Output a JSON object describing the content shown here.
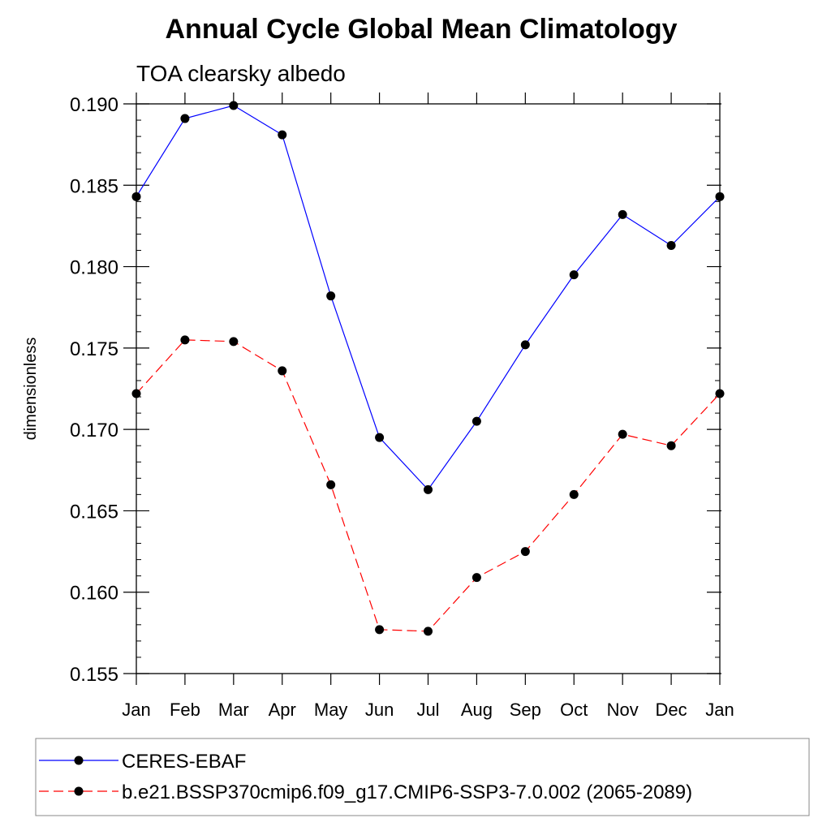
{
  "chart_data": {
    "type": "line",
    "title": "Annual Cycle Global Mean Climatology",
    "subtitle": "TOA clearsky albedo",
    "xlabel": "",
    "ylabel": "dimensionless",
    "categories": [
      "Jan",
      "Feb",
      "Mar",
      "Apr",
      "May",
      "Jun",
      "Jul",
      "Aug",
      "Sep",
      "Oct",
      "Nov",
      "Dec",
      "Jan"
    ],
    "ylim": [
      0.155,
      0.19
    ],
    "yticks": [
      "0.155",
      "0.160",
      "0.165",
      "0.170",
      "0.175",
      "0.180",
      "0.185",
      "0.190"
    ],
    "grid": false,
    "legend_position": "bottom",
    "series": [
      {
        "name": "CERES-EBAF",
        "color": "#0000ff",
        "line_style": "solid",
        "marker": "circle",
        "values": [
          0.1843,
          0.1891,
          0.1899,
          0.1881,
          0.1782,
          0.1695,
          0.1663,
          0.1705,
          0.1752,
          0.1795,
          0.1832,
          0.1813,
          0.1843
        ]
      },
      {
        "name": "b.e21.BSSP370cmip6.f09_g17.CMIP6-SSP3-7.0.002 (2065-2089)",
        "color": "#ff0000",
        "line_style": "dashed",
        "marker": "circle",
        "values": [
          0.1722,
          0.1755,
          0.1754,
          0.1736,
          0.1666,
          0.1577,
          0.1576,
          0.1609,
          0.1625,
          0.166,
          0.1697,
          0.169,
          0.1722
        ]
      }
    ]
  }
}
